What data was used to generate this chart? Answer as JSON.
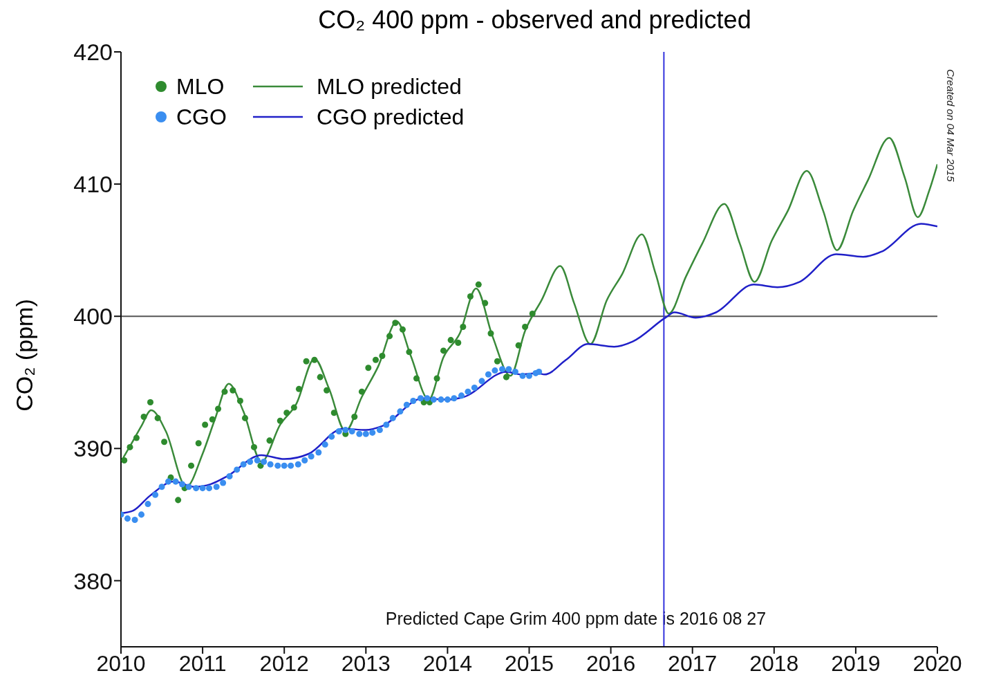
{
  "chart_data": {
    "type": "scatter",
    "title": "CO₂ 400 ppm - observed and predicted",
    "ylabel": "CO₂ (ppm)",
    "xlim": [
      2010,
      2020
    ],
    "xticks": [
      2010,
      2011,
      2012,
      2013,
      2014,
      2015,
      2016,
      2017,
      2018,
      2019,
      2020
    ],
    "ylim": [
      375,
      420
    ],
    "yticks": [
      380,
      390,
      400,
      410,
      420
    ],
    "grid": false,
    "legend": "top left",
    "line_style": "solid",
    "annotations": [
      "Created on 04 Mar 2015",
      "Predicted Cape Grim 400 ppm date is 2016 08 27"
    ],
    "ref_lines": [
      {
        "axis": "y",
        "value": 400,
        "color": "#555555"
      },
      {
        "axis": "x",
        "value": 2016.65,
        "color": "#3333dd"
      }
    ],
    "series": [
      {
        "name": "MLO",
        "marker": "circle",
        "color": "#2e8b2e",
        "x": [
          2010.04,
          2010.11,
          2010.19,
          2010.28,
          2010.36,
          2010.45,
          2010.53,
          2010.61,
          2010.7,
          2010.78,
          2010.86,
          2010.95,
          2011.03,
          2011.12,
          2011.19,
          2011.27,
          2011.37,
          2011.46,
          2011.52,
          2011.63,
          2011.71,
          2011.82,
          2011.95,
          2012.03,
          2012.12,
          2012.18,
          2012.27,
          2012.37,
          2012.44,
          2012.52,
          2012.61,
          2012.75,
          2012.86,
          2012.95,
          2013.03,
          2013.12,
          2013.2,
          2013.29,
          2013.36,
          2013.45,
          2013.53,
          2013.62,
          2013.71,
          2013.78,
          2013.87,
          2013.95,
          2014.04,
          2014.13,
          2014.19,
          2014.28,
          2014.38,
          2014.46,
          2014.53,
          2014.61,
          2014.72,
          2014.87,
          2014.95,
          2015.04
        ],
        "values": [
          389.1,
          390.1,
          390.8,
          392.4,
          393.5,
          392.3,
          390.5,
          387.8,
          386.1,
          387,
          388.7,
          390.4,
          391.8,
          392.2,
          393,
          394.3,
          394.4,
          393.6,
          392.3,
          390.1,
          388.7,
          390.6,
          392.1,
          392.7,
          393.1,
          394.5,
          396.6,
          396.7,
          395.4,
          394.4,
          392.7,
          391.1,
          392.4,
          394.3,
          396.1,
          396.7,
          397,
          398.5,
          399.5,
          399,
          397.3,
          395.3,
          393.5,
          393.5,
          395.3,
          397.4,
          398.2,
          398,
          399.2,
          401.5,
          402.4,
          401,
          398.7,
          396.6,
          395.4,
          397.8,
          399.2,
          400.2
        ]
      },
      {
        "name": "CGO",
        "marker": "circle",
        "color": "#3a8ef0",
        "x": [
          2010,
          2010.08,
          2010.17,
          2010.25,
          2010.33,
          2010.42,
          2010.5,
          2010.58,
          2010.67,
          2010.75,
          2010.83,
          2010.92,
          2011,
          2011.08,
          2011.17,
          2011.25,
          2011.33,
          2011.42,
          2011.5,
          2011.58,
          2011.67,
          2011.75,
          2011.83,
          2011.92,
          2012,
          2012.08,
          2012.17,
          2012.25,
          2012.33,
          2012.42,
          2012.5,
          2012.58,
          2012.67,
          2012.75,
          2012.83,
          2012.92,
          2013,
          2013.08,
          2013.17,
          2013.25,
          2013.33,
          2013.42,
          2013.5,
          2013.58,
          2013.67,
          2013.75,
          2013.83,
          2013.92,
          2014,
          2014.08,
          2014.17,
          2014.25,
          2014.33,
          2014.42,
          2014.5,
          2014.58,
          2014.67,
          2014.75,
          2014.83,
          2014.92,
          2015,
          2015.08,
          2015.12
        ],
        "values": [
          385,
          384.7,
          384.6,
          385,
          385.8,
          386.5,
          387.1,
          387.5,
          387.5,
          387.3,
          387.1,
          387,
          387,
          387,
          387.1,
          387.4,
          387.9,
          388.4,
          388.8,
          389,
          389.1,
          389,
          388.8,
          388.7,
          388.7,
          388.7,
          388.8,
          389.1,
          389.4,
          389.7,
          390.3,
          390.9,
          391.3,
          391.4,
          391.3,
          391.1,
          391.1,
          391.2,
          391.4,
          391.8,
          392.3,
          392.8,
          393.3,
          393.6,
          393.8,
          393.8,
          393.7,
          393.7,
          393.7,
          393.8,
          394,
          394.3,
          394.6,
          395.1,
          395.6,
          395.9,
          396,
          396,
          395.8,
          395.5,
          395.5,
          395.7,
          395.8
        ]
      },
      {
        "name": "MLO predicted",
        "type": "line",
        "marker": "none",
        "color": "#3a8a3a",
        "x": [
          2010,
          2010.15,
          2010.25,
          2010.37,
          2010.55,
          2010.8,
          2011.0,
          2011.15,
          2011.32,
          2011.5,
          2011.72,
          2011.95,
          2012.15,
          2012.37,
          2012.55,
          2012.75,
          2012.95,
          2013.15,
          2013.38,
          2013.55,
          2013.77,
          2013.95,
          2014.15,
          2014.35,
          2014.55,
          2014.77,
          2014.95,
          2015.15,
          2015.38,
          2015.55,
          2015.75,
          2015.95,
          2016.14,
          2016.38,
          2016.55,
          2016.71,
          2016.92,
          2017.12,
          2017.39,
          2017.58,
          2017.76,
          2017.97,
          2018.17,
          2018.4,
          2018.6,
          2018.77,
          2018.97,
          2019.15,
          2019.41,
          2019.6,
          2019.76,
          2019.9,
          2020
        ],
        "values": [
          389,
          390.6,
          391.7,
          392.9,
          391.3,
          387.1,
          389.6,
          392.2,
          394.9,
          392.8,
          389,
          391.8,
          393.4,
          396.8,
          394.5,
          391.3,
          393.9,
          396.2,
          399.6,
          397,
          393.7,
          396.9,
          398.7,
          402.1,
          398.5,
          395.5,
          398.9,
          401.2,
          403.8,
          401,
          397.9,
          401.2,
          403.2,
          406.2,
          403.2,
          400.2,
          403,
          405.5,
          408.5,
          405.5,
          402.6,
          405.7,
          408,
          411,
          408,
          405,
          408,
          410.3,
          413.5,
          410.5,
          407.5,
          409.5,
          411.5
        ]
      },
      {
        "name": "CGO predicted",
        "type": "line",
        "marker": "none",
        "color": "#2020c8",
        "x": [
          2010,
          2010.15,
          2010.35,
          2010.65,
          2010.9,
          2011.1,
          2011.3,
          2011.72,
          2012.0,
          2012.3,
          2012.72,
          2013.0,
          2013.2,
          2013.7,
          2014.0,
          2014.2,
          2014.72,
          2014.9,
          2015.1,
          2015.19,
          2015.45,
          2015.72,
          2016.04,
          2016.27,
          2016.67,
          2016.78,
          2017.04,
          2017.29,
          2017.75,
          2018.04,
          2018.31,
          2018.76,
          2019.09,
          2019.32,
          2019.8,
          2020
        ],
        "values": [
          385.1,
          385.3,
          386.4,
          387.5,
          387.1,
          387.3,
          387.9,
          389.5,
          389.2,
          389.6,
          391.5,
          391.4,
          391.7,
          393.8,
          393.7,
          393.9,
          395.8,
          395.6,
          395.7,
          395.6,
          396.7,
          397.9,
          397.7,
          398.1,
          399.9,
          400.3,
          399.9,
          400.3,
          402.4,
          402.2,
          402.6,
          404.7,
          404.5,
          404.9,
          407,
          406.8
        ]
      }
    ]
  }
}
